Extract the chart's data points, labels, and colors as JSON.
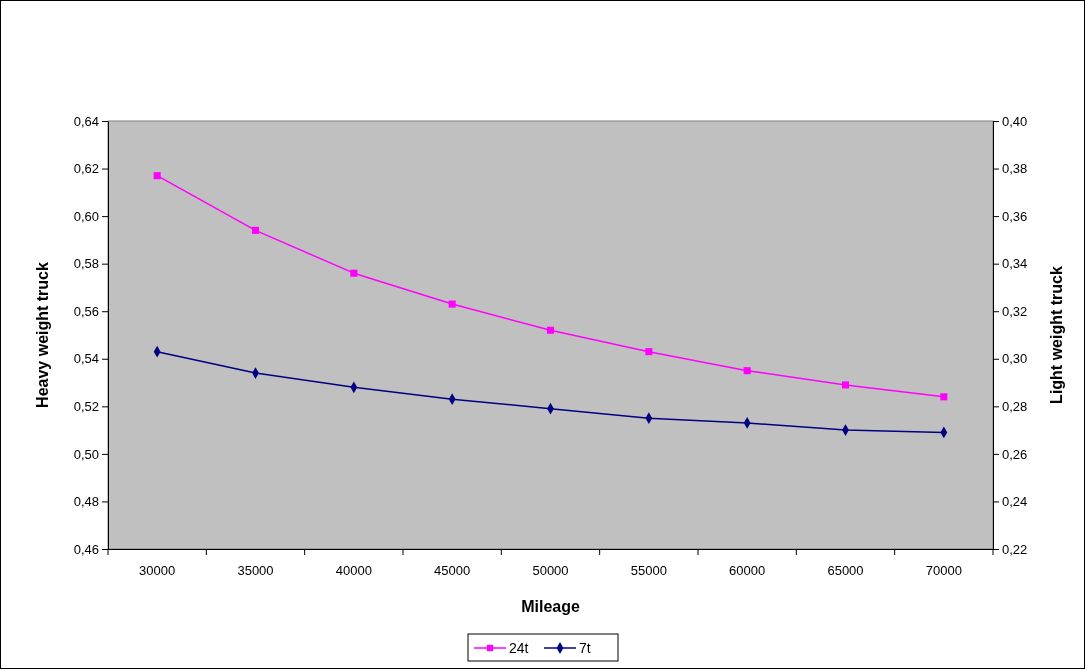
{
  "chart_data": {
    "type": "line",
    "xlabel": "Mileage",
    "ylabel": "Heavy weight truck",
    "y2label": "Light weight truck",
    "categories": [
      "30000",
      "35000",
      "40000",
      "45000",
      "50000",
      "55000",
      "60000",
      "65000",
      "70000"
    ],
    "series": [
      {
        "name": "24t",
        "color": "#ff00ff",
        "marker": "square",
        "values": [
          0.617,
          0.594,
          0.576,
          0.563,
          0.552,
          0.543,
          0.535,
          0.529,
          0.524
        ]
      },
      {
        "name": "7t",
        "color": "#000080",
        "marker": "diamond",
        "axis": "y2",
        "values": [
          0.303,
          0.294,
          0.288,
          0.283,
          0.279,
          0.275,
          0.273,
          0.27,
          0.269
        ]
      }
    ],
    "ylim": [
      0.46,
      0.64
    ],
    "yticks": [
      {
        "value": 0.46,
        "label": "0,46"
      },
      {
        "value": 0.48,
        "label": "0,48"
      },
      {
        "value": 0.5,
        "label": "0,50"
      },
      {
        "value": 0.52,
        "label": "0,52"
      },
      {
        "value": 0.54,
        "label": "0,54"
      },
      {
        "value": 0.56,
        "label": "0,56"
      },
      {
        "value": 0.58,
        "label": "0,58"
      },
      {
        "value": 0.6,
        "label": "0,60"
      },
      {
        "value": 0.62,
        "label": "0,62"
      },
      {
        "value": 0.64,
        "label": "0,64"
      }
    ],
    "y2lim": [
      0.22,
      0.4
    ],
    "y2ticks": [
      {
        "value": 0.22,
        "label": "0,22"
      },
      {
        "value": 0.24,
        "label": "0,24"
      },
      {
        "value": 0.26,
        "label": "0,26"
      },
      {
        "value": 0.28,
        "label": "0,28"
      },
      {
        "value": 0.3,
        "label": "0,30"
      },
      {
        "value": 0.32,
        "label": "0,32"
      },
      {
        "value": 0.34,
        "label": "0,34"
      },
      {
        "value": 0.36,
        "label": "0,36"
      },
      {
        "value": 0.38,
        "label": "0,38"
      },
      {
        "value": 0.4,
        "label": "0,40"
      }
    ],
    "grid": false,
    "legend": "bottom"
  }
}
